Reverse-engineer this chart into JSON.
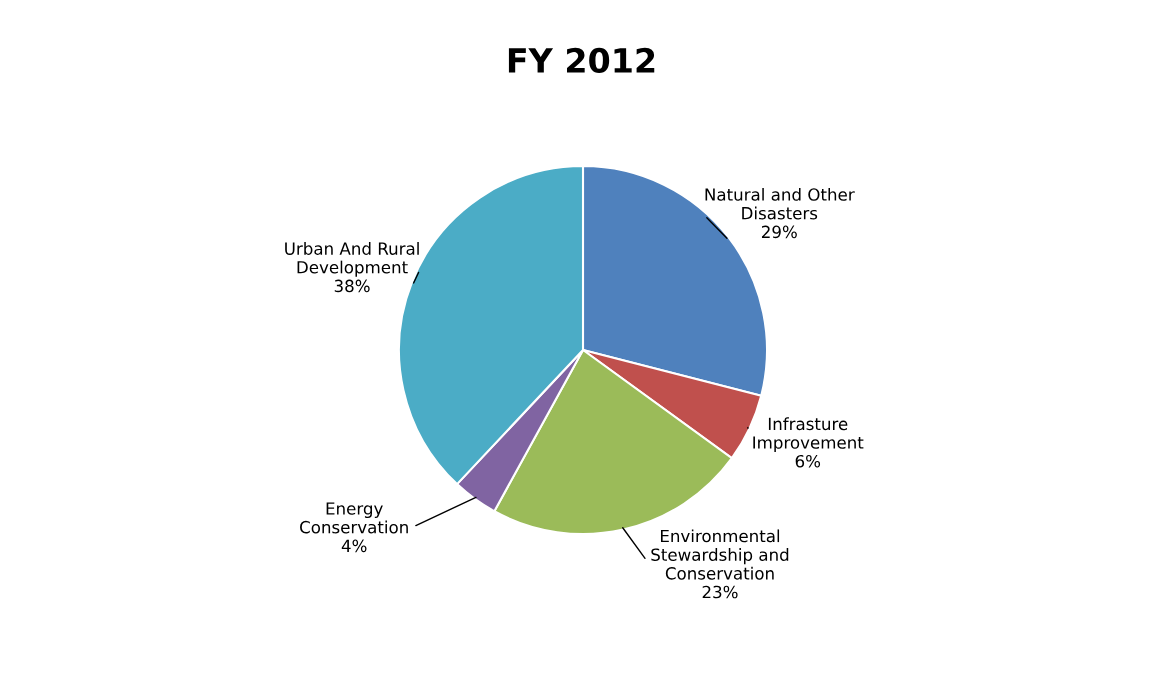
{
  "chart_data": {
    "type": "pie",
    "title": "FY 2012",
    "categories": [
      "Natural and Other\nDisasters",
      "Infrasture\nImprovement",
      "Environmental\nStewardship and\nConservation",
      "Energy\nConservation",
      "Urban And Rural\nDevelopment"
    ],
    "values": [
      29,
      6,
      23,
      4,
      38
    ],
    "value_labels": [
      "29%",
      "6%",
      "23%",
      "4%",
      "38%"
    ],
    "colors": [
      "#4f81bd",
      "#c0504d",
      "#9bbb59",
      "#8064a2",
      "#4bacc6"
    ],
    "legend": false
  }
}
